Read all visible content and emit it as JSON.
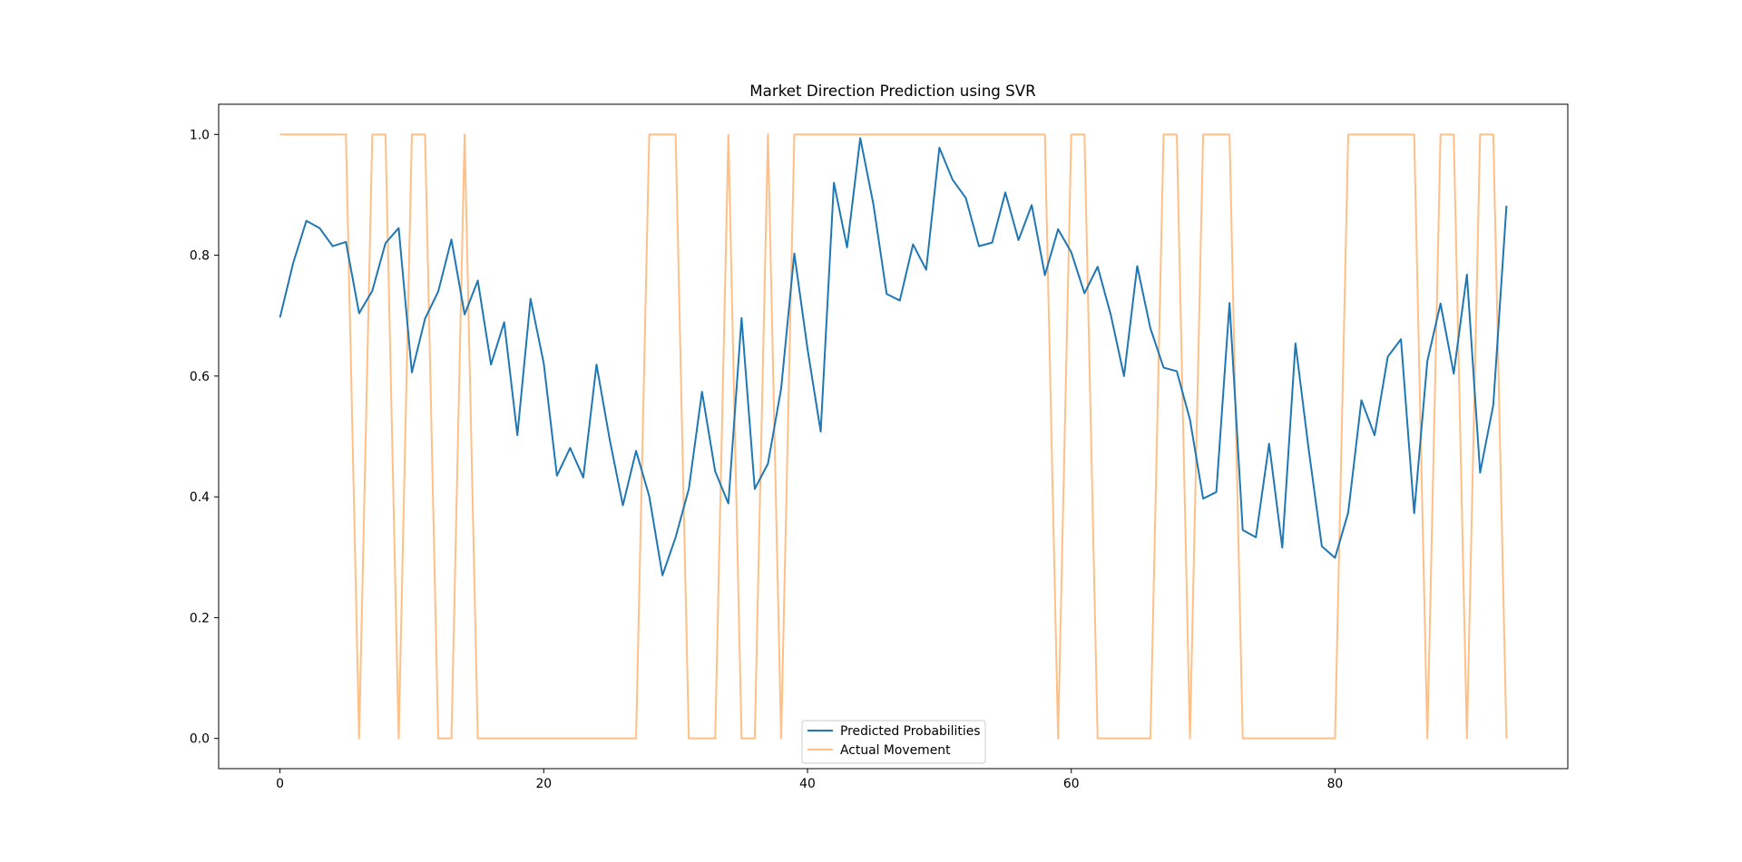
{
  "chart_data": {
    "type": "line",
    "title": "Market Direction Prediction using SVR",
    "xlabel": "",
    "ylabel": "",
    "xlim": [
      -4.65,
      97.65
    ],
    "ylim": [
      -0.05,
      1.05
    ],
    "x_ticks": [
      0,
      20,
      40,
      60,
      80
    ],
    "x_tick_labels": [
      "0",
      "20",
      "40",
      "60",
      "80"
    ],
    "y_ticks": [
      0.0,
      0.2,
      0.4,
      0.6,
      0.8,
      1.0
    ],
    "y_tick_labels": [
      "0.0",
      "0.2",
      "0.4",
      "0.6",
      "0.8",
      "1.0"
    ],
    "grid": false,
    "legend_position": "bottom-center",
    "series": [
      {
        "name": "Predicted Probabilities",
        "color": "#1f77b4",
        "opacity": 1.0,
        "values": [
          0.697,
          0.787,
          0.857,
          0.845,
          0.815,
          0.822,
          0.704,
          0.741,
          0.82,
          0.845,
          0.606,
          0.695,
          0.74,
          0.826,
          0.702,
          0.758,
          0.619,
          0.689,
          0.502,
          0.728,
          0.621,
          0.435,
          0.481,
          0.432,
          0.619,
          0.495,
          0.386,
          0.476,
          0.401,
          0.27,
          0.333,
          0.413,
          0.574,
          0.442,
          0.389,
          0.696,
          0.413,
          0.455,
          0.579,
          0.803,
          0.645,
          0.508,
          0.92,
          0.813,
          0.994,
          0.884,
          0.736,
          0.725,
          0.818,
          0.776,
          0.978,
          0.925,
          0.895,
          0.815,
          0.821,
          0.904,
          0.825,
          0.883,
          0.767,
          0.843,
          0.805,
          0.737,
          0.781,
          0.701,
          0.6,
          0.782,
          0.679,
          0.614,
          0.608,
          0.528,
          0.397,
          0.408,
          0.721,
          0.345,
          0.333,
          0.488,
          0.316,
          0.654,
          0.479,
          0.318,
          0.299,
          0.374,
          0.56,
          0.502,
          0.632,
          0.661,
          0.373,
          0.625,
          0.72,
          0.604,
          0.768,
          0.44,
          0.552,
          0.882
        ]
      },
      {
        "name": "Actual Movement",
        "color": "#ff7f0e",
        "opacity": 0.5,
        "values": [
          1,
          1,
          1,
          1,
          1,
          1,
          0,
          1,
          1,
          0,
          1,
          1,
          0,
          0,
          1,
          0,
          0,
          0,
          0,
          0,
          0,
          0,
          0,
          0,
          0,
          0,
          0,
          0,
          1,
          1,
          1,
          0,
          0,
          0,
          1,
          0,
          0,
          1,
          0,
          1,
          1,
          1,
          1,
          1,
          1,
          1,
          1,
          1,
          1,
          1,
          1,
          1,
          1,
          1,
          1,
          1,
          1,
          1,
          1,
          0,
          1,
          1,
          0,
          0,
          0,
          0,
          0,
          1,
          1,
          0,
          1,
          1,
          1,
          0,
          0,
          0,
          0,
          0,
          0,
          0,
          0,
          1,
          1,
          1,
          1,
          1,
          1,
          0,
          1,
          1,
          0,
          1,
          1,
          0
        ]
      }
    ]
  }
}
